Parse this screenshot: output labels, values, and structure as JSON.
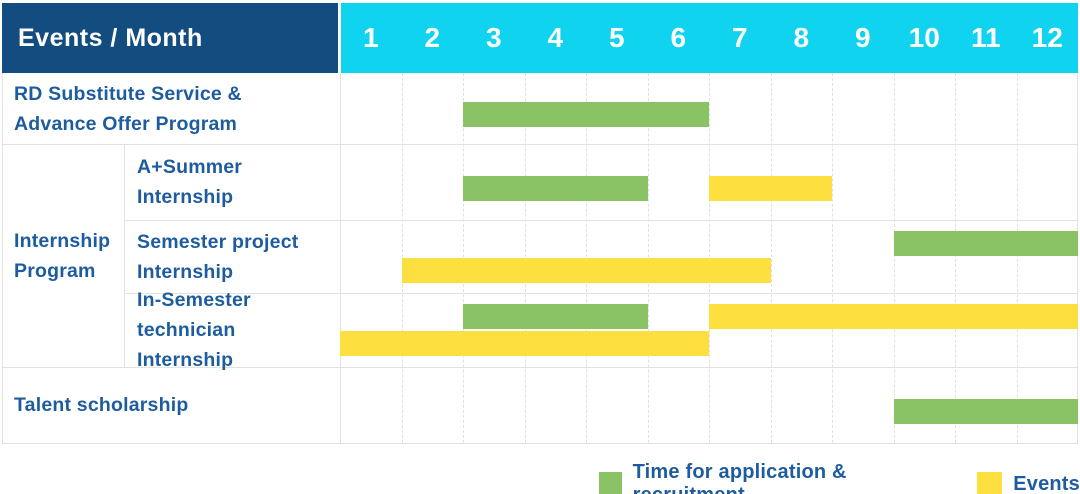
{
  "header": {
    "title": "Events / Month"
  },
  "chart_data": {
    "type": "bar",
    "subtype": "gantt",
    "title": "Events / Month",
    "x_axis_label": "Month",
    "months": [
      "1",
      "2",
      "3",
      "4",
      "5",
      "6",
      "7",
      "8",
      "9",
      "10",
      "11",
      "12"
    ],
    "x_range": [
      1,
      12
    ],
    "grid": "dashed-vertical-month-lines",
    "series_styles": {
      "application": {
        "name": "Time for application & recruitment",
        "color": "#8ac266"
      },
      "events": {
        "name": "Events",
        "color": "#fde03f"
      }
    },
    "group_label": "Internship\nProgram",
    "rows": [
      {
        "id": "rd-substitute-service",
        "label": "RD Substitute Service &\nAdvance Offer Program",
        "group": null,
        "indent": false,
        "lanes": [
          [
            {
              "series": "application",
              "start_month": 3,
              "end_month": 6
            }
          ]
        ]
      },
      {
        "id": "a-plus-summer-internship",
        "label": "A+Summer\nInternship",
        "group": "Internship Program",
        "indent": true,
        "lanes": [
          [
            {
              "series": "application",
              "start_month": 3,
              "end_month": 5
            },
            {
              "series": "events",
              "start_month": 7,
              "end_month": 8
            }
          ]
        ]
      },
      {
        "id": "semester-project-internship",
        "label": "Semester project\nInternship",
        "group": "Internship Program",
        "indent": true,
        "lanes": [
          [
            {
              "series": "application",
              "start_month": 10,
              "end_month": 12
            }
          ],
          [
            {
              "series": "events",
              "start_month": 2,
              "end_month": 7
            }
          ]
        ]
      },
      {
        "id": "in-semester-technician-internship",
        "label": "In-Semester\ntechnician Internship",
        "group": "Internship Program",
        "indent": true,
        "lanes": [
          [
            {
              "series": "application",
              "start_month": 3,
              "end_month": 5
            },
            {
              "series": "events",
              "start_month": 7,
              "end_month": 12
            }
          ],
          [
            {
              "series": "events",
              "start_month": 1,
              "end_month": 6
            }
          ]
        ]
      },
      {
        "id": "talent-scholarship",
        "label": "Talent scholarship",
        "group": null,
        "indent": false,
        "lanes": [
          [
            {
              "series": "application",
              "start_month": 10,
              "end_month": 12
            }
          ]
        ]
      }
    ],
    "legend": {
      "position": "bottom-right",
      "items": [
        {
          "series": "application",
          "label": "Time for application & recruitment"
        },
        {
          "series": "events",
          "label": "Events"
        }
      ]
    }
  },
  "colors": {
    "header_navy": "#134c7e",
    "header_cyan": "#0fd3ef",
    "label_text_blue": "#1d5c9f",
    "bar_green": "#8ac266",
    "bar_yellow": "#fde03f",
    "grid_gray": "#e2e2e2"
  }
}
